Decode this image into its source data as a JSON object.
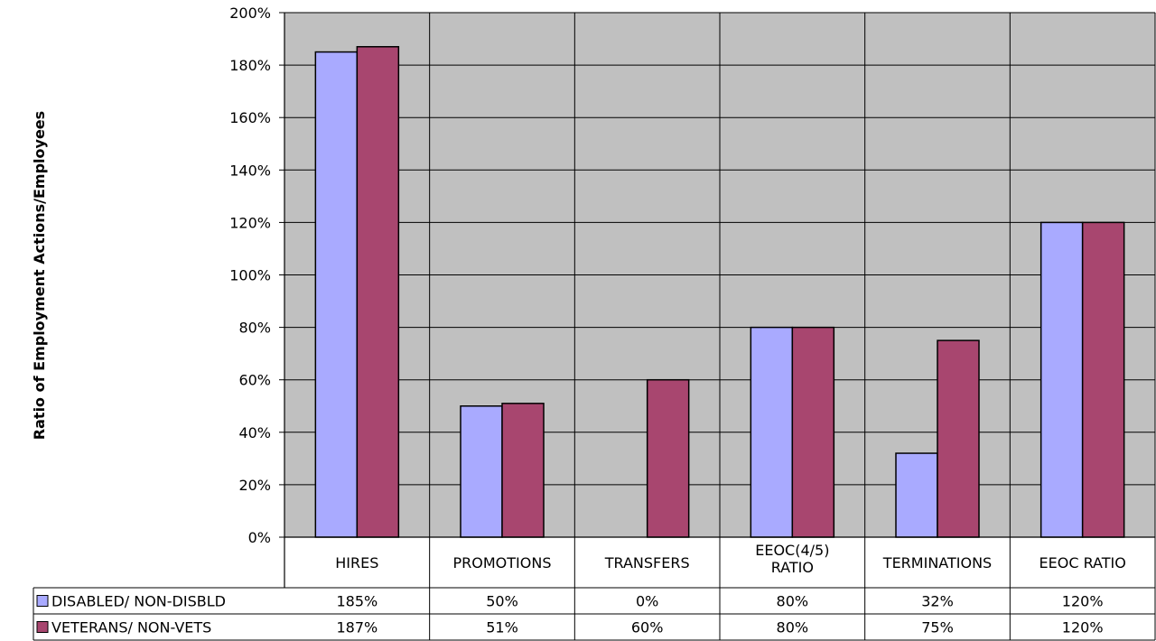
{
  "chart_data": {
    "type": "bar",
    "ylabel": "Ratio of Employment Actions/Employees",
    "ylim": [
      0,
      200
    ],
    "yticks": [
      "0%",
      "20%",
      "40%",
      "60%",
      "80%",
      "100%",
      "120%",
      "140%",
      "160%",
      "180%",
      "200%"
    ],
    "categories": [
      "HIRES",
      "PROMOTIONS",
      "TRANSFERS",
      "EEOC(4/5) RATIO",
      "TERMINATIONS",
      "EEOC RATIO"
    ],
    "grid": true,
    "legend": "data-table-left",
    "series": [
      {
        "name": "DISABLED/ NON-DISBLD",
        "color": "#a9aaff",
        "values": [
          185,
          50,
          0,
          80,
          32,
          120
        ],
        "labels": [
          "185%",
          "50%",
          "0%",
          "80%",
          "32%",
          "120%"
        ]
      },
      {
        "name": "VETERANS/ NON-VETS",
        "color": "#a8466f",
        "values": [
          187,
          51,
          60,
          80,
          75,
          120
        ],
        "labels": [
          "187%",
          "51%",
          "60%",
          "80%",
          "75%",
          "120%"
        ]
      }
    ],
    "plot_background": "#c0c0c0"
  }
}
